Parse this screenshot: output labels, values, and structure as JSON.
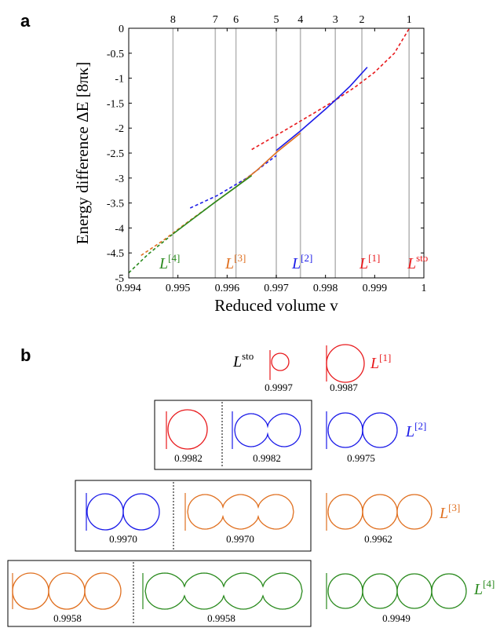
{
  "panel_a": {
    "letter": "a",
    "ylabel": "Energy difference ΔE [8πκ]",
    "xlabel": "Reduced volume v",
    "xticks": [
      "0.994",
      "0.995",
      "0.996",
      "0.997",
      "0.998",
      "0.999",
      "1"
    ],
    "yticks": [
      "0",
      "-0.5",
      "-1",
      "-1.5",
      "-2",
      "-2.5",
      "-3",
      "-3.5",
      "-4",
      "-4.5",
      "-5"
    ],
    "vertical_line_labels": [
      "1",
      "2",
      "3",
      "4",
      "5",
      "6",
      "7",
      "8"
    ],
    "curve_labels": [
      {
        "base": "L",
        "sup": "sto",
        "color": "#e8191c"
      },
      {
        "base": "L",
        "sup": "[1]",
        "color": "#e8191c"
      },
      {
        "base": "L",
        "sup": "[2]",
        "color": "#1c1ce8"
      },
      {
        "base": "L",
        "sup": "[3]",
        "color": "#e07020"
      },
      {
        "base": "L",
        "sup": "[4]",
        "color": "#2a8a1e"
      }
    ]
  },
  "chart_data": {
    "type": "line",
    "xlabel": "Reduced volume v",
    "ylabel": "Energy difference ΔE [8πκ]",
    "xlim": [
      0.994,
      1.0
    ],
    "ylim": [
      -5,
      0
    ],
    "grid": false,
    "vertical_lines": [
      {
        "label": "1",
        "x": 0.9997
      },
      {
        "label": "2",
        "x": 0.99874
      },
      {
        "label": "3",
        "x": 0.9982
      },
      {
        "label": "4",
        "x": 0.99749
      },
      {
        "label": "5",
        "x": 0.997
      },
      {
        "label": "6",
        "x": 0.99618
      },
      {
        "label": "7",
        "x": 0.99576
      },
      {
        "label": "8",
        "x": 0.9949
      }
    ],
    "series": [
      {
        "name": "L[1]",
        "color": "#e8191c",
        "style": "dashed",
        "x": [
          0.9965,
          0.9972,
          0.9978,
          0.9982,
          0.9986,
          0.999,
          0.9994,
          0.9997
        ],
        "y": [
          -2.43,
          -2.03,
          -1.68,
          -1.44,
          -1.18,
          -0.88,
          -0.5,
          -0.01
        ]
      },
      {
        "name": "L[2]",
        "color": "#1c1ce8",
        "style": "solid",
        "x": [
          0.997,
          0.9975,
          0.998,
          0.9982,
          0.9985,
          0.99885
        ],
        "y": [
          -2.45,
          -2.05,
          -1.62,
          -1.44,
          -1.16,
          -0.78
        ]
      },
      {
        "name": "L[2]",
        "color": "#1c1ce8",
        "style": "dashed",
        "x": [
          0.99525,
          0.9958,
          0.9964,
          0.997
        ],
        "y": [
          -3.6,
          -3.35,
          -3.0,
          -2.55
        ]
      },
      {
        "name": "L[3]",
        "color": "#e07020",
        "style": "solid",
        "x": [
          0.99576,
          0.99618,
          0.9966,
          0.997,
          0.99749
        ],
        "y": [
          -3.48,
          -3.18,
          -2.85,
          -2.49,
          -2.1
        ]
      },
      {
        "name": "L[3]",
        "color": "#e07020",
        "style": "dashed",
        "x": [
          0.99425,
          0.9947,
          0.9952,
          0.99576
        ],
        "y": [
          -4.55,
          -4.25,
          -3.88,
          -3.48
        ]
      },
      {
        "name": "L[4]",
        "color": "#2a8a1e",
        "style": "solid",
        "x": [
          0.9949,
          0.9953,
          0.99576,
          0.99618,
          0.9965
        ],
        "y": [
          -4.12,
          -3.82,
          -3.48,
          -3.18,
          -2.95
        ]
      },
      {
        "name": "L[4]",
        "color": "#2a8a1e",
        "style": "dashed",
        "x": [
          0.994,
          0.9944,
          0.9949
        ],
        "y": [
          -4.9,
          -4.52,
          -4.12
        ]
      }
    ]
  },
  "panel_b": {
    "letter": "b",
    "rows": [
      {
        "label": {
          "base": "L",
          "sup": "sto",
          "color": "#e8191c"
        },
        "shapes": [
          {
            "kind": "circles",
            "n": 1,
            "r": 13,
            "color": "#e8191c",
            "volume": "0.9997"
          },
          {
            "kind": "circles",
            "n": 1,
            "r": 25,
            "color": "#e8191c",
            "volume": "0.9987"
          }
        ]
      },
      {
        "label": {
          "base": "L",
          "sup": "[2]",
          "color": "#1c1ce8"
        },
        "boxed": [
          {
            "kind": "circles",
            "n": 1,
            "r": 26,
            "color": "#e8191c",
            "volume": "0.9982"
          },
          {
            "kind": "necked",
            "n": 2,
            "color": "#1c1ce8",
            "volume": "0.9982"
          }
        ],
        "free": {
          "kind": "circles",
          "n": 2,
          "r": 23,
          "color": "#1c1ce8",
          "volume": "0.9975"
        }
      },
      {
        "label": {
          "base": "L",
          "sup": "[3]",
          "color": "#e07020"
        },
        "boxed": [
          {
            "kind": "circles",
            "n": 2,
            "r": 23,
            "color": "#1c1ce8",
            "volume": "0.9970"
          },
          {
            "kind": "necked",
            "n": 3,
            "color": "#e07020",
            "volume": "0.9970"
          }
        ],
        "free": {
          "kind": "circles",
          "n": 3,
          "r": 22,
          "color": "#e07020",
          "volume": "0.9962"
        }
      },
      {
        "label": {
          "base": "L",
          "sup": "[4]",
          "color": "#2a8a1e"
        },
        "boxed": [
          {
            "kind": "circles",
            "n": 3,
            "r": 24,
            "color": "#e07020",
            "volume": "0.9958"
          },
          {
            "kind": "necked",
            "n": 4,
            "color": "#2a8a1e",
            "volume": "0.9958"
          }
        ],
        "free": {
          "kind": "circles",
          "n": 4,
          "r": 23,
          "color": "#2a8a1e",
          "volume": "0.9949"
        }
      }
    ]
  }
}
